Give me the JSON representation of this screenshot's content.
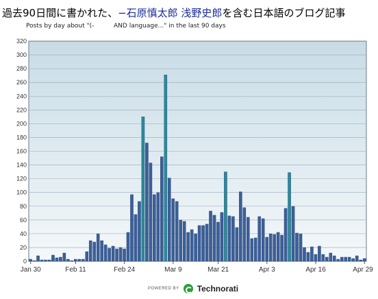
{
  "header": {
    "title_prefix": "過去90日間に書かれた、",
    "title_query": "−石原慎太郎 浅野史郎",
    "title_suffix": "を含む日本語のブログ記事",
    "subtitle": "Posts by day about \"(-          AND language...\" in the last 90 days"
  },
  "footer": {
    "powered": "POWERED BY",
    "brand": "Technorati"
  },
  "colors": {
    "bar": "#3b5f98",
    "bar_edge": "#2a4470",
    "highlight": "#2a8a9a"
  },
  "chart_data": {
    "type": "bar",
    "title": "",
    "xlabel": "",
    "ylabel": "",
    "ylim": [
      0,
      320
    ],
    "yticks": [
      0,
      20,
      40,
      60,
      80,
      100,
      120,
      140,
      160,
      180,
      200,
      220,
      240,
      260,
      280,
      300,
      320
    ],
    "xtick_labels": [
      {
        "label": "Jan 30",
        "index": 0
      },
      {
        "label": "Feb 11",
        "index": 12
      },
      {
        "label": "Feb 24",
        "index": 25
      },
      {
        "label": "Mar 9",
        "index": 38
      },
      {
        "label": "Mar 21",
        "index": 50
      },
      {
        "label": "Apr 3",
        "index": 63
      },
      {
        "label": "Apr 16",
        "index": 76
      },
      {
        "label": "Apr 29",
        "index": 89
      }
    ],
    "values": [
      3,
      1,
      8,
      2,
      2,
      2,
      9,
      5,
      6,
      12,
      3,
      1,
      3,
      3,
      3,
      14,
      30,
      28,
      40,
      30,
      24,
      19,
      22,
      18,
      20,
      18,
      42,
      97,
      68,
      87,
      210,
      172,
      143,
      97,
      100,
      152,
      271,
      121,
      91,
      87,
      60,
      58,
      42,
      46,
      40,
      52,
      52,
      54,
      73,
      67,
      57,
      71,
      130,
      66,
      65,
      49,
      101,
      78,
      64,
      33,
      34,
      65,
      62,
      35,
      40,
      39,
      42,
      38,
      77,
      129,
      80,
      41,
      40,
      20,
      13,
      21,
      10,
      22,
      10,
      6,
      12,
      8,
      3,
      6,
      6,
      6,
      4,
      8,
      2,
      4
    ],
    "highlight_indices": [
      30,
      36,
      52,
      69
    ],
    "grid": true
  }
}
